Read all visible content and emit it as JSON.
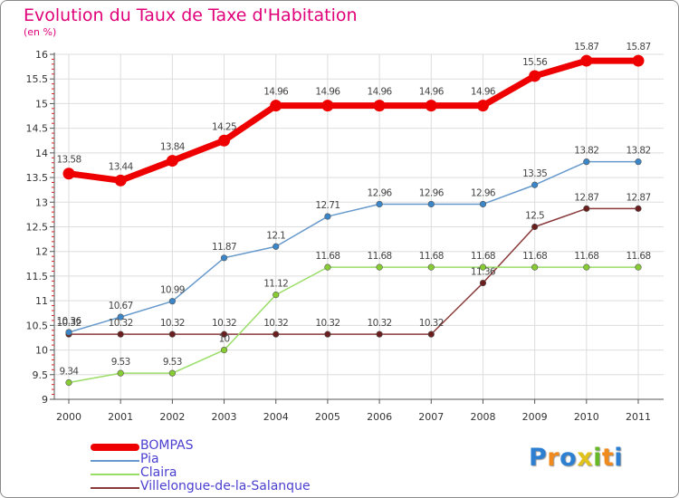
{
  "title": "Evolution du Taux de Taxe d'Habitation",
  "subtitle": "(en %)",
  "logo": {
    "text": "Proxiti",
    "letters": [
      {
        "ch": "P",
        "color": "#2c7fd1"
      },
      {
        "ch": "r",
        "color": "#f08a1c"
      },
      {
        "ch": "o",
        "color": "#2c7fd1"
      },
      {
        "ch": "x",
        "color": "#e0c21a"
      },
      {
        "ch": "i",
        "color": "#68b828"
      },
      {
        "ch": "t",
        "color": "#f08a1c"
      },
      {
        "ch": "i",
        "color": "#2c7fd1"
      }
    ]
  },
  "chart_data": {
    "type": "line",
    "title": "Evolution du Taux de Taxe d'Habitation",
    "ylabel": "(en %)",
    "xlabel": "",
    "ylim": [
      9,
      16
    ],
    "yticks": [
      "9",
      "9.5",
      "10",
      "10.5",
      "11",
      "11.5",
      "12",
      "12.5",
      "13",
      "13.5",
      "14",
      "14.5",
      "15",
      "15.5",
      "16"
    ],
    "grid": true,
    "legend_position": "bottom-left",
    "categories": [
      "2000",
      "2001",
      "2002",
      "2003",
      "2004",
      "2005",
      "2006",
      "2007",
      "2008",
      "2009",
      "2010",
      "2011"
    ],
    "series": [
      {
        "name": "BOMPAS",
        "color": "#ee0000",
        "values": [
          13.58,
          13.44,
          13.84,
          14.25,
          14.96,
          14.96,
          14.96,
          14.96,
          14.96,
          15.56,
          15.87,
          15.87
        ],
        "labels": [
          "13.58",
          "13.44",
          "13.84",
          "14.25",
          "14.96",
          "14.96",
          "14.96",
          "14.96",
          "14.96",
          "15.56",
          "15.87",
          "15.87"
        ]
      },
      {
        "name": "Pia",
        "color": "#6699cc",
        "values": [
          10.36,
          10.67,
          10.99,
          11.87,
          12.1,
          12.71,
          12.96,
          12.96,
          12.96,
          13.35,
          13.82,
          13.82
        ],
        "labels": [
          "10.36",
          "10.67",
          "10.99",
          "11.87",
          "12.1",
          "12.71",
          "12.96",
          "12.96",
          "12.96",
          "13.35",
          "13.82",
          "13.82"
        ]
      },
      {
        "name": "Claira",
        "color": "#99dd66",
        "values": [
          9.34,
          9.53,
          9.53,
          10.0,
          11.12,
          11.68,
          11.68,
          11.68,
          11.68,
          11.68,
          11.68,
          11.68
        ],
        "labels": [
          "9.34",
          "9.53",
          "9.53",
          "10",
          "11.12",
          "11.68",
          "11.68",
          "11.68",
          "11.68",
          "11.68",
          "11.68",
          "11.68"
        ]
      },
      {
        "name": "Villelongue-de-la-Salanque",
        "color": "#8a3a3a",
        "values": [
          10.32,
          10.32,
          10.32,
          10.32,
          10.32,
          10.32,
          10.32,
          10.32,
          11.36,
          12.5,
          12.87,
          12.87
        ],
        "labels": [
          "10.32",
          "10.32",
          "10.32",
          "10.32",
          "10.32",
          "10.32",
          "10.32",
          "10.32",
          "11.36",
          "12.5",
          "12.87",
          "12.87"
        ]
      }
    ]
  }
}
